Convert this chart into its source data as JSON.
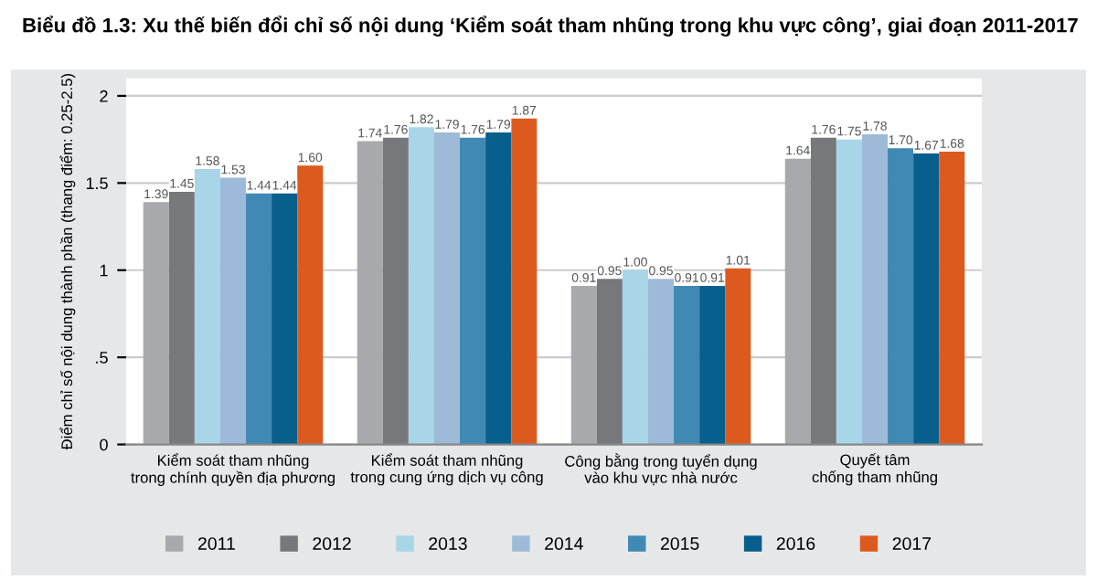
{
  "chart_data": {
    "type": "bar",
    "title": "Biểu đồ 1.3: Xu thế biến đổi chỉ số nội dung ‘Kiểm soát tham nhũng trong khu vực công’, giai đoạn 2011-2017",
    "ylabel": "Điểm chỉ số nội dung thành phần (thang điểm: 0.25-2.5)",
    "categories": [
      "Kiểm soát tham nhũng\ntrong chính quyền địa phương",
      "Kiểm soát tham nhũng\ntrong cung ứng dịch vụ công",
      "Công bằng trong tuyển dụng\nvào khu vực nhà nước",
      "Quyết tâm\nchống tham nhũng"
    ],
    "series": [
      {
        "name": "2011",
        "color": "#a7a9ac",
        "values": [
          1.39,
          1.74,
          0.91,
          1.64
        ]
      },
      {
        "name": "2012",
        "color": "#77787b",
        "values": [
          1.45,
          1.76,
          0.95,
          1.76
        ]
      },
      {
        "name": "2013",
        "color": "#a8d5e8",
        "values": [
          1.58,
          1.82,
          1.0,
          1.75
        ]
      },
      {
        "name": "2014",
        "color": "#9dbbd8",
        "values": [
          1.53,
          1.79,
          0.95,
          1.78
        ]
      },
      {
        "name": "2015",
        "color": "#3f89b4",
        "values": [
          1.44,
          1.76,
          0.91,
          1.7
        ]
      },
      {
        "name": "2016",
        "color": "#065f8c",
        "values": [
          1.44,
          1.79,
          0.91,
          1.67
        ]
      },
      {
        "name": "2017",
        "color": "#dd5a1f",
        "values": [
          1.6,
          1.87,
          1.01,
          1.68
        ]
      }
    ],
    "value_labels": [
      [
        "1.39",
        "1.74",
        "0.91",
        "1.64"
      ],
      [
        "1.45",
        "1.76",
        "0.95",
        "1.76"
      ],
      [
        "1.58",
        "1.82",
        "1.00",
        "1.75"
      ],
      [
        "1.53",
        "1.79",
        "0.95",
        "1.78"
      ],
      [
        "1.44",
        "1.76",
        "0.91",
        "1.70"
      ],
      [
        "1.44",
        "1.79",
        "0.91",
        "1.67"
      ],
      [
        "1.60",
        "1.87",
        "1.01",
        "1.68"
      ]
    ],
    "ylim": [
      0,
      2.1
    ],
    "yticks": [
      0,
      {
        "value": 0.5,
        "label": ".5"
      },
      1,
      1.5,
      2
    ],
    "grid": "y",
    "legend": "bottom"
  }
}
